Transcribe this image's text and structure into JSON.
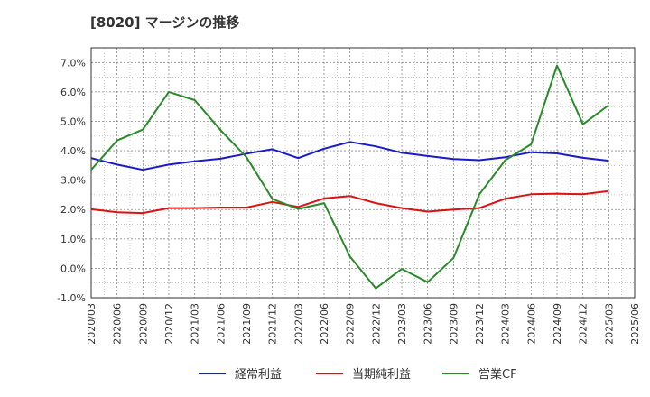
{
  "title": "[8020]  マージンの推移",
  "chart_data": {
    "type": "line",
    "title": "[8020]  マージンの推移",
    "x": [
      "2020/03",
      "2020/06",
      "2020/09",
      "2020/12",
      "2021/03",
      "2021/06",
      "2021/09",
      "2021/12",
      "2022/03",
      "2022/06",
      "2022/09",
      "2022/12",
      "2023/03",
      "2023/06",
      "2023/09",
      "2023/12",
      "2024/03",
      "2024/06",
      "2024/09",
      "2024/12",
      "2025/03",
      "2025/06"
    ],
    "y_ticks": [
      "-1.0%",
      "0.0%",
      "1.0%",
      "2.0%",
      "3.0%",
      "4.0%",
      "5.0%",
      "6.0%",
      "7.0%"
    ],
    "ylim": [
      -1.0,
      7.5
    ],
    "grid": true,
    "legend_position": "bottom",
    "series": [
      {
        "name": "経常利益",
        "color": "#1a1acc",
        "values": [
          3.75,
          3.53,
          3.35,
          3.53,
          3.64,
          3.73,
          3.9,
          4.05,
          3.75,
          4.07,
          4.3,
          4.15,
          3.93,
          3.82,
          3.72,
          3.68,
          3.78,
          3.95,
          3.91,
          3.76,
          3.66,
          null
        ]
      },
      {
        "name": "当期純利益",
        "color": "#dd1111",
        "values": [
          2.01,
          1.91,
          1.88,
          2.05,
          2.05,
          2.07,
          2.07,
          2.26,
          2.09,
          2.38,
          2.46,
          2.22,
          2.05,
          1.93,
          2.0,
          2.05,
          2.37,
          2.52,
          2.54,
          2.52,
          2.63,
          null
        ]
      },
      {
        "name": "営業CF",
        "color": "#2a8a2a",
        "values": [
          3.35,
          4.35,
          4.72,
          6.0,
          5.72,
          4.7,
          3.78,
          2.36,
          2.02,
          2.22,
          0.4,
          -0.68,
          -0.02,
          -0.47,
          0.35,
          2.52,
          3.68,
          4.22,
          6.9,
          4.9,
          5.55,
          null
        ]
      }
    ]
  }
}
